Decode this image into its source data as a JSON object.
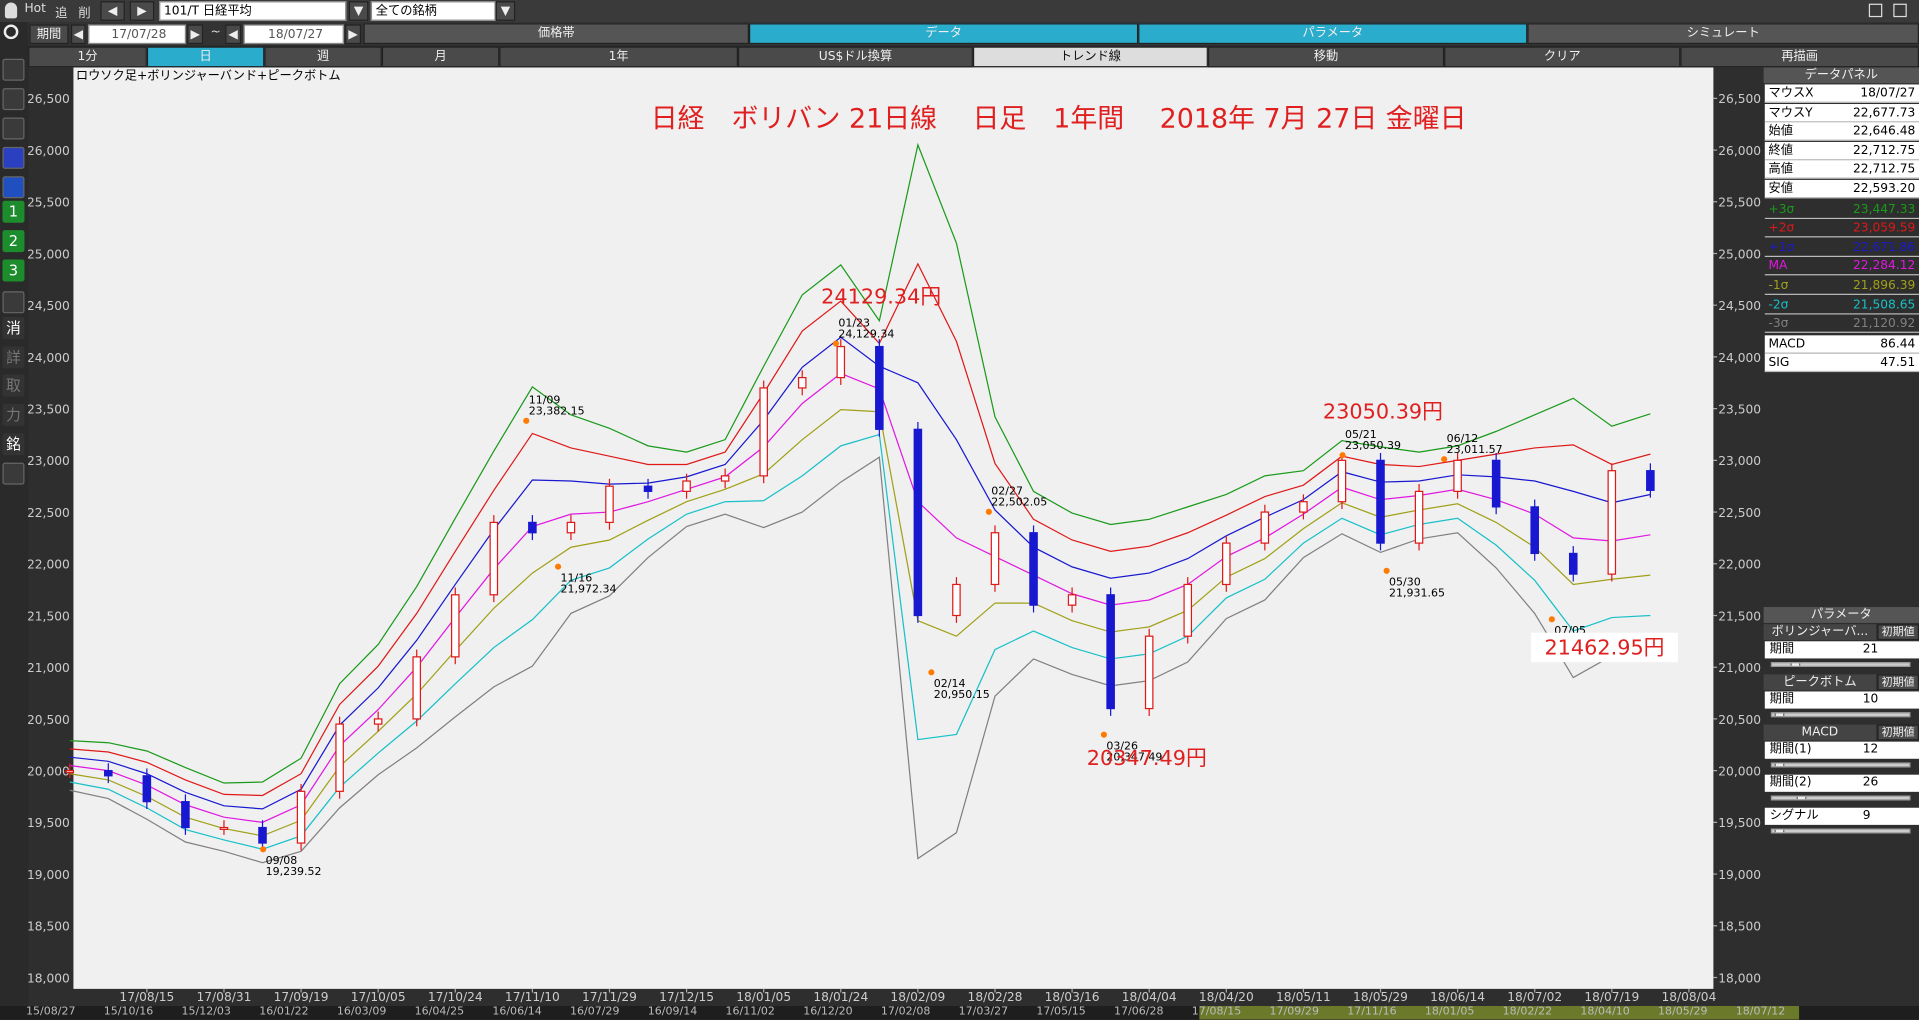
{
  "toolbar": {
    "hot": "Hot",
    "add": "追",
    "del": "削",
    "symbol": "101/T 日経平均",
    "universe": "全ての銘柄"
  },
  "period": {
    "label": "期間",
    "from": "17/07/28",
    "sep": "~",
    "to": "18/07/27"
  },
  "tabs": [
    "価格帯",
    "データ",
    "パラメータ",
    "シミュレート"
  ],
  "buttons": [
    "1分",
    "日",
    "週",
    "月",
    "1年",
    "US$ドル換算",
    "トレンド線",
    "移動",
    "クリア",
    "再描画"
  ],
  "side_icons": [
    "1",
    "2",
    "3",
    "消",
    "詳",
    "取",
    "力",
    "銘"
  ],
  "chart_data": {
    "type": "bollinger",
    "subtitle": "ロウソク足+ボリンジャーバンド+ピークボトム",
    "title": "日経　ボリバン 21日線　 日足　1年間　 2018年 7月 27日 金曜日",
    "categories": [
      null,
      null,
      "17/08/15",
      null,
      "17/08/31",
      null,
      "17/09/19",
      null,
      "17/10/05",
      null,
      "17/10/24",
      null,
      "17/11/10",
      null,
      "17/11/29",
      null,
      "17/12/15",
      null,
      "18/01/05",
      null,
      "18/01/24",
      null,
      "18/02/09",
      null,
      "18/02/28",
      null,
      "18/03/16",
      null,
      "18/04/04",
      null,
      "18/04/20",
      null,
      "18/05/11",
      null,
      "18/05/29",
      null,
      "18/06/14",
      null,
      "18/07/02",
      null,
      "18/07/19",
      null,
      "18/08/04"
    ],
    "series": [
      {
        "name": "+3σ",
        "color": "#1a9a1a",
        "values": [
          20290,
          20270,
          20190,
          20030,
          19880,
          19890,
          20120,
          20840,
          21220,
          21780,
          22440,
          23090,
          23710,
          23440,
          23310,
          23140,
          23080,
          23200,
          23910,
          24600,
          24890,
          24350,
          26050,
          25100,
          23420,
          22700,
          22490,
          22380,
          22430,
          22550,
          22670,
          22850,
          22900,
          23190,
          23130,
          23080,
          23140,
          23280,
          23440,
          23600,
          23330,
          23450,
          null
        ]
      },
      {
        "name": "+2σ",
        "color": "#e01818",
        "values": [
          20210,
          20180,
          20080,
          19910,
          19770,
          19760,
          19970,
          20640,
          21010,
          21520,
          22120,
          22710,
          23260,
          23120,
          23040,
          22960,
          22960,
          23080,
          23650,
          24250,
          24540,
          24130,
          24900,
          24150,
          22970,
          22430,
          22230,
          22120,
          22170,
          22300,
          22470,
          22650,
          22760,
          23040,
          22960,
          22940,
          23000,
          23060,
          23120,
          23150,
          22960,
          23060,
          null
        ]
      },
      {
        "name": "+1σ",
        "color": "#1818d0",
        "values": [
          20130,
          20090,
          19970,
          19790,
          19660,
          19630,
          19820,
          20440,
          20800,
          21260,
          21800,
          22330,
          22810,
          22800,
          22770,
          22780,
          22840,
          22960,
          23390,
          23900,
          24190,
          23910,
          23750,
          23200,
          22520,
          22160,
          21970,
          21860,
          21910,
          22050,
          22270,
          22450,
          22620,
          22890,
          22790,
          22800,
          22860,
          22840,
          22800,
          22700,
          22590,
          22670,
          null
        ]
      },
      {
        "name": "MA",
        "color": "#e018e0",
        "values": [
          20050,
          20000,
          19860,
          19670,
          19550,
          19500,
          19670,
          20240,
          20590,
          21000,
          21480,
          21950,
          22360,
          22480,
          22500,
          22600,
          22720,
          22840,
          23130,
          23550,
          23840,
          23690,
          22600,
          22250,
          22070,
          21890,
          21710,
          21600,
          21650,
          21800,
          22070,
          22250,
          22480,
          22740,
          22620,
          22660,
          22720,
          22620,
          22480,
          22250,
          22220,
          22280,
          null
        ]
      },
      {
        "name": "-1σ",
        "color": "#a0a018",
        "values": [
          19970,
          19910,
          19750,
          19550,
          19440,
          19370,
          19520,
          20040,
          20380,
          20740,
          21160,
          21570,
          21910,
          22160,
          22230,
          22420,
          22600,
          22720,
          22870,
          23200,
          23490,
          23470,
          21450,
          21300,
          21620,
          21620,
          21450,
          21340,
          21390,
          21550,
          21870,
          22050,
          22340,
          22590,
          22450,
          22520,
          22580,
          22400,
          22160,
          21800,
          21850,
          21890,
          null
        ]
      },
      {
        "name": "-2σ",
        "color": "#18c0c8",
        "values": [
          19890,
          19820,
          19640,
          19430,
          19330,
          19240,
          19370,
          19840,
          20170,
          20480,
          20840,
          21190,
          21460,
          21840,
          21960,
          22240,
          22480,
          22600,
          22610,
          22850,
          23140,
          23250,
          20300,
          20350,
          21170,
          21350,
          21190,
          21080,
          21130,
          21300,
          21670,
          21850,
          22200,
          22440,
          22280,
          22380,
          22440,
          22180,
          21840,
          21350,
          21480,
          21500,
          null
        ]
      },
      {
        "name": "-3σ",
        "color": "#808080",
        "values": [
          19810,
          19730,
          19530,
          19310,
          19220,
          19110,
          19220,
          19640,
          19960,
          20220,
          20520,
          20810,
          21010,
          21520,
          21690,
          22060,
          22360,
          22480,
          22350,
          22500,
          22790,
          23030,
          19150,
          19400,
          20720,
          21080,
          20930,
          20820,
          20870,
          21050,
          21470,
          21650,
          22060,
          22290,
          22110,
          22240,
          22300,
          21960,
          21520,
          20900,
          21110,
          21110,
          null
        ]
      }
    ],
    "close": [
      20000,
      19950,
      19700,
      19450,
      19450,
      19300,
      19800,
      20450,
      20500,
      21100,
      21700,
      22400,
      22300,
      22400,
      22750,
      22700,
      22800,
      22850,
      23700,
      23800,
      24100,
      23300,
      21500,
      21800,
      22300,
      21600,
      21700,
      20600,
      21300,
      21800,
      22200,
      22500,
      22600,
      23000,
      22200,
      22700,
      23000,
      22550,
      22100,
      21900,
      22900,
      22710,
      null
    ],
    "up_color": "#e01818",
    "down_color": "#1818d0",
    "ylim": [
      17890,
      26800
    ],
    "yticks": [
      {
        "value": 18000,
        "label": "18,000"
      },
      {
        "value": 18500,
        "label": "18,500"
      },
      {
        "value": 19000,
        "label": "19,000"
      },
      {
        "value": 19500,
        "label": "19,500"
      },
      {
        "value": 20000,
        "label": "20,000"
      },
      {
        "value": 20500,
        "label": "20,500"
      },
      {
        "value": 21000,
        "label": "21,000"
      },
      {
        "value": 21500,
        "label": "21,500"
      },
      {
        "value": 22000,
        "label": "22,000"
      },
      {
        "value": 22500,
        "label": "22,500"
      },
      {
        "value": 23000,
        "label": "23,000"
      },
      {
        "value": 23500,
        "label": "23,500"
      },
      {
        "value": 24000,
        "label": "24,000"
      },
      {
        "value": 24500,
        "label": "24,500"
      },
      {
        "value": 25000,
        "label": "25,000"
      },
      {
        "value": 25500,
        "label": "25,500"
      },
      {
        "value": 26000,
        "label": "26,000"
      },
      {
        "value": 26500,
        "label": "26,500"
      }
    ],
    "grid": false,
    "peaks": [
      {
        "date": "11/09",
        "value": 23382.15,
        "label": "23,382.15"
      },
      {
        "date": "11/16",
        "value": 21972.34,
        "label": "21,972.34"
      },
      {
        "date": "09/08",
        "value": 19239.52,
        "label": "19,239.52"
      },
      {
        "date": "01/23",
        "value": 24129.34,
        "label": "24,129.34"
      },
      {
        "date": "02/14",
        "value": 20950.15,
        "label": "20,950.15"
      },
      {
        "date": "02/27",
        "value": 22502.05,
        "label": "22,502.05"
      },
      {
        "date": "03/26",
        "value": 20347.49,
        "label": "20,347.49"
      },
      {
        "date": "05/21",
        "value": 23050.39,
        "label": "23,050.39"
      },
      {
        "date": "05/30",
        "value": 21931.65,
        "label": "21,931.65"
      },
      {
        "date": "06/12",
        "value": 23011.57,
        "label": "23,011.57"
      },
      {
        "date": "07/05",
        "value": 21462.95,
        "label": "21,462.95"
      }
    ],
    "annotations": [
      "24129.34円",
      "23050.39円",
      "20347.49円",
      "21462.95円"
    ]
  },
  "scroll_dates": [
    "15/08/27",
    "15/10/16",
    "15/12/03",
    "16/01/22",
    "16/03/09",
    "16/04/25",
    "16/06/14",
    "16/07/29",
    "16/09/14",
    "16/11/02",
    "16/12/20",
    "17/02/08",
    "17/03/27",
    "17/05/15",
    "17/06/28",
    "17/08/15",
    "17/09/29",
    "17/11/16",
    "18/01/05",
    "18/02/22",
    "18/04/10",
    "18/05/29",
    "18/07/12"
  ],
  "data_panel": {
    "title": "データパネル",
    "rows": [
      {
        "label": "マウスX",
        "value": "18/07/27"
      },
      {
        "label": "マウスY",
        "value": "22,677.73"
      },
      {
        "label": "始値",
        "value": "22,646.48"
      },
      {
        "label": "終値",
        "value": "22,712.75"
      },
      {
        "label": "高値",
        "value": "22,712.75"
      },
      {
        "label": "安値",
        "value": "22,593.20"
      }
    ],
    "band_values": [
      "23,447.33",
      "23,059.59",
      "22,671.86",
      "22,284.12",
      "21,896.39",
      "21,508.65",
      "21,120.92"
    ],
    "macd": [
      {
        "label": "MACD",
        "value": "86.44"
      },
      {
        "label": "SIG",
        "value": "47.51"
      }
    ]
  },
  "param_panel": {
    "title": "パラメータ",
    "groups": [
      {
        "name": "ボリンジャーバ...",
        "reset": "初期値",
        "params": [
          {
            "label": "期間",
            "value": "21"
          }
        ]
      },
      {
        "name": "ピークボトム",
        "reset": "初期値",
        "params": [
          {
            "label": "期間",
            "value": "10"
          }
        ]
      },
      {
        "name": "MACD",
        "reset": "初期値",
        "params": [
          {
            "label": "期間(1)",
            "value": "12"
          },
          {
            "label": "期間(2)",
            "value": "26"
          },
          {
            "label": "シグナル",
            "value": "9"
          }
        ]
      }
    ]
  }
}
